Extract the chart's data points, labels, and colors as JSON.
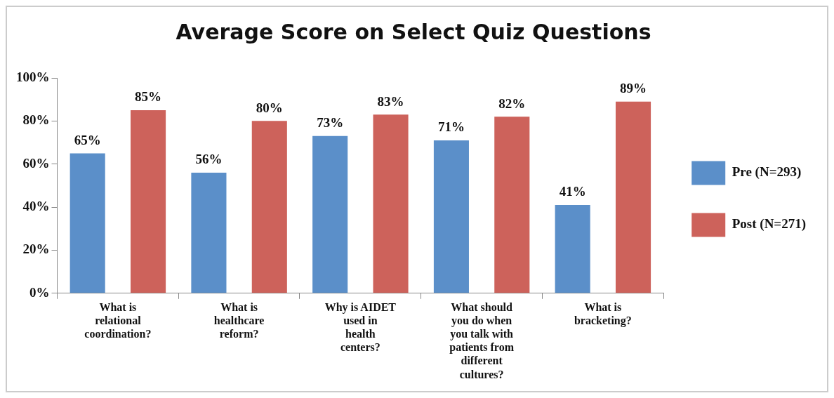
{
  "chart_data": {
    "type": "bar",
    "title": "Average Score on Select Quiz Questions",
    "categories": [
      "What is relational coordination?",
      "What is healthcare reform?",
      "Why is AIDET used in health centers?",
      "What should you do when you talk with patients from different cultures?",
      "What is bracketing?"
    ],
    "series": [
      {
        "name": "Pre (N=293)",
        "color": "#5b8fc9",
        "values": [
          65,
          56,
          73,
          71,
          41
        ],
        "value_labels": [
          "65%",
          "56%",
          "73%",
          "71%",
          "41%"
        ]
      },
      {
        "name": "Post (N=271)",
        "color": "#cd625b",
        "values": [
          85,
          80,
          83,
          82,
          89
        ],
        "value_labels": [
          "85%",
          "80%",
          "83%",
          "82%",
          "89%"
        ]
      }
    ],
    "ylim": [
      0,
      100
    ],
    "yticks": [
      {
        "value": 0,
        "label": "0%"
      },
      {
        "value": 20,
        "label": "20%"
      },
      {
        "value": 40,
        "label": "40%"
      },
      {
        "value": 60,
        "label": "60%"
      },
      {
        "value": 80,
        "label": "80%"
      },
      {
        "value": 100,
        "label": "100%"
      }
    ],
    "grid": false,
    "legend": "right"
  }
}
